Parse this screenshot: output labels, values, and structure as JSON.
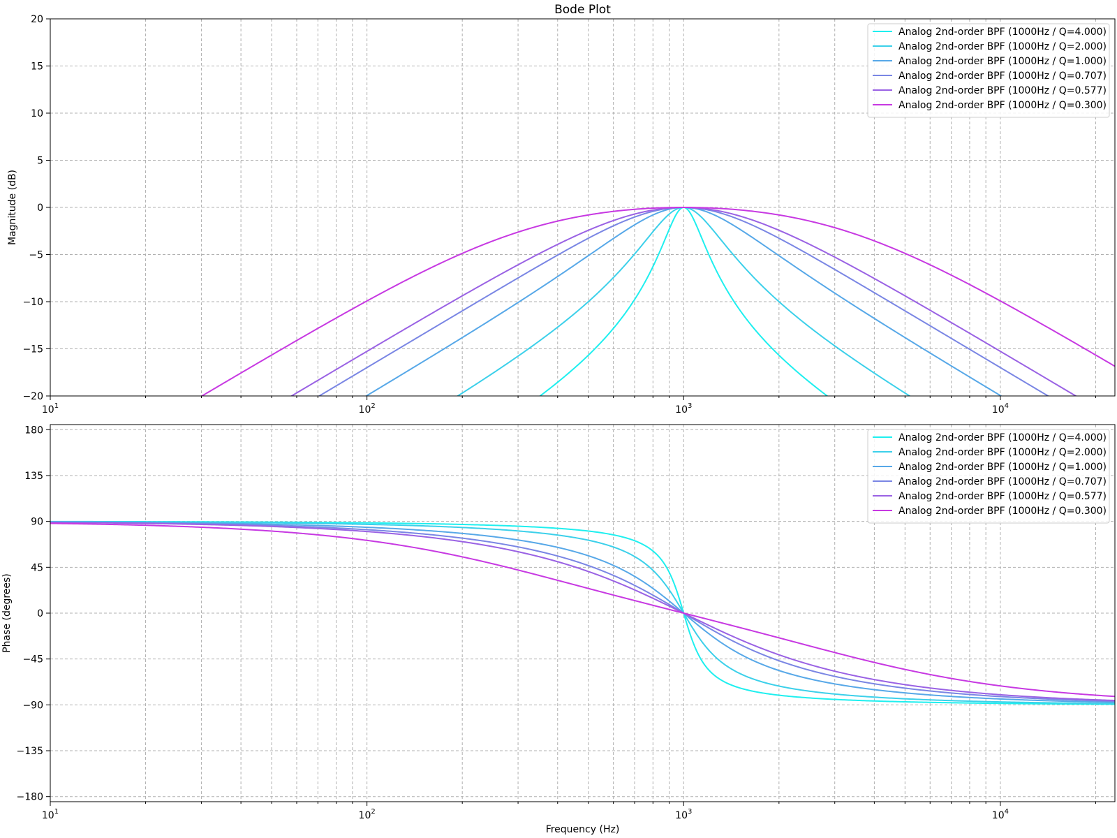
{
  "chart_data": [
    {
      "type": "line",
      "title": "Bode Plot",
      "xlabel": "",
      "ylabel": "Magnitude (dB)",
      "xscale": "log",
      "xlim": [
        10,
        23000
      ],
      "ylim": [
        -20,
        20
      ],
      "x_tick_labels": [
        {
          "value": 10,
          "mantissa": "10",
          "exp": "1"
        },
        {
          "value": 100,
          "mantissa": "10",
          "exp": "2"
        },
        {
          "value": 1000,
          "mantissa": "10",
          "exp": "3"
        },
        {
          "value": 10000,
          "mantissa": "10",
          "exp": "4"
        }
      ],
      "y_ticks": [
        20,
        15,
        10,
        5,
        0,
        -5,
        -10,
        -15,
        -20
      ],
      "y_tick_labels": [
        "20",
        "15",
        "10",
        "5",
        "0",
        "−5",
        "−10",
        "−15",
        "−20"
      ],
      "grid": true,
      "legend_position": "top-right",
      "quantity": "magnitude",
      "filter": {
        "type": "bandpass",
        "order": 2,
        "center_hz": 1000
      },
      "series": [
        {
          "name": "Analog 2nd-order BPF (1000Hz / Q=4.000)",
          "q": 4.0,
          "color": "#1fefef"
        },
        {
          "name": "Analog 2nd-order BPF (1000Hz / Q=2.000)",
          "q": 2.0,
          "color": "#3cd0ea"
        },
        {
          "name": "Analog 2nd-order BPF (1000Hz / Q=1.000)",
          "q": 1.0,
          "color": "#57a8e8"
        },
        {
          "name": "Analog 2nd-order BPF (1000Hz / Q=0.707)",
          "q": 0.707,
          "color": "#7a86e4"
        },
        {
          "name": "Analog 2nd-order BPF (1000Hz / Q=0.577)",
          "q": 0.577,
          "color": "#9a62e4"
        },
        {
          "name": "Analog 2nd-order BPF (1000Hz / Q=0.300)",
          "q": 0.3,
          "color": "#c739e2"
        }
      ]
    },
    {
      "type": "line",
      "title": "",
      "xlabel": "Frequency (Hz)",
      "ylabel": "Phase (degrees)",
      "xscale": "log",
      "xlim": [
        10,
        23000
      ],
      "ylim": [
        -185,
        185
      ],
      "x_tick_labels": [
        {
          "value": 10,
          "mantissa": "10",
          "exp": "1"
        },
        {
          "value": 100,
          "mantissa": "10",
          "exp": "2"
        },
        {
          "value": 1000,
          "mantissa": "10",
          "exp": "3"
        },
        {
          "value": 10000,
          "mantissa": "10",
          "exp": "4"
        }
      ],
      "y_ticks": [
        180,
        135,
        90,
        45,
        0,
        -45,
        -90,
        -135,
        -180
      ],
      "y_tick_labels": [
        "180",
        "135",
        "90",
        "45",
        "0",
        "−45",
        "−90",
        "−135",
        "−180"
      ],
      "grid": true,
      "legend_position": "top-right",
      "quantity": "phase",
      "filter": {
        "type": "bandpass",
        "order": 2,
        "center_hz": 1000
      },
      "series": [
        {
          "name": "Analog 2nd-order BPF (1000Hz / Q=4.000)",
          "q": 4.0,
          "color": "#1fefef"
        },
        {
          "name": "Analog 2nd-order BPF (1000Hz / Q=2.000)",
          "q": 2.0,
          "color": "#3cd0ea"
        },
        {
          "name": "Analog 2nd-order BPF (1000Hz / Q=1.000)",
          "q": 1.0,
          "color": "#57a8e8"
        },
        {
          "name": "Analog 2nd-order BPF (1000Hz / Q=0.707)",
          "q": 0.707,
          "color": "#7a86e4"
        },
        {
          "name": "Analog 2nd-order BPF (1000Hz / Q=0.577)",
          "q": 0.577,
          "color": "#9a62e4"
        },
        {
          "name": "Analog 2nd-order BPF (1000Hz / Q=0.300)",
          "q": 0.3,
          "color": "#c739e2"
        }
      ]
    }
  ]
}
